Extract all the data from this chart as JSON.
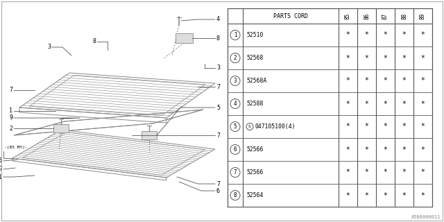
{
  "background_color": "#ffffff",
  "parts_cord_header": "PARTS CORD",
  "year_cols": [
    "85",
    "86",
    "87",
    "88",
    "89"
  ],
  "parts": [
    {
      "num": "1",
      "code": "52510"
    },
    {
      "num": "2",
      "code": "52568"
    },
    {
      "num": "3",
      "code": "52568A"
    },
    {
      "num": "4",
      "code": "52588"
    },
    {
      "num": "5",
      "code": "047105100(4)",
      "special": true
    },
    {
      "num": "6",
      "code": "52566"
    },
    {
      "num": "7",
      "code": "52566"
    },
    {
      "num": "8",
      "code": "52564"
    }
  ],
  "watermark": "A566000011",
  "tc": "#555555",
  "dc": "#777777"
}
